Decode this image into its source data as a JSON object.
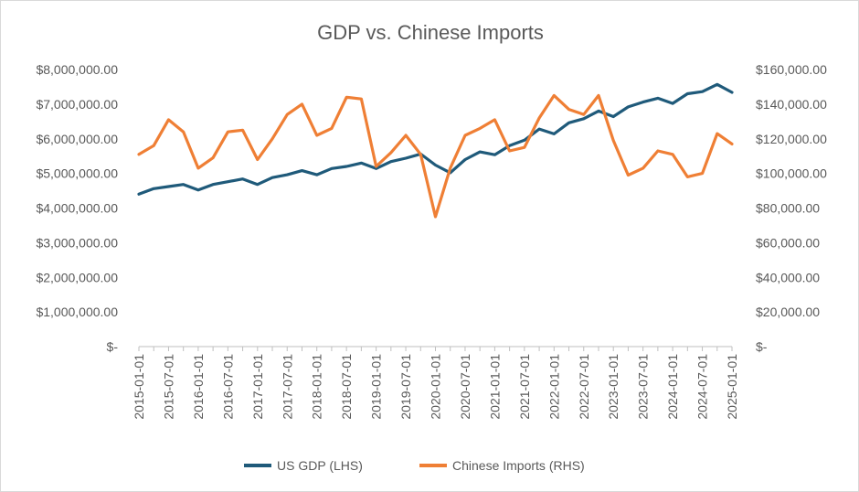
{
  "chart_data": {
    "type": "line",
    "title": "GDP vs. Chinese Imports",
    "colors": {
      "gdp": "#1f5a7a",
      "imports": "#ef7f35",
      "axis": "#bfbfbf",
      "text": "#595959"
    },
    "x_tick_labels": [
      "2015-01-01",
      "2015-07-01",
      "2016-01-01",
      "2016-07-01",
      "2017-01-01",
      "2017-07-01",
      "2018-01-01",
      "2018-07-01",
      "2019-01-01",
      "2019-07-01",
      "2020-01-01",
      "2020-07-01",
      "2021-01-01",
      "2021-07-01",
      "2022-01-01",
      "2022-07-01",
      "2023-01-01",
      "2023-07-01",
      "2024-01-01",
      "2024-07-01",
      "2025-01-01"
    ],
    "y_left": {
      "label": "",
      "ylim": [
        0,
        8000000
      ],
      "ticks": [
        "$-",
        "$1,000,000.00",
        "$2,000,000.00",
        "$3,000,000.00",
        "$4,000,000.00",
        "$5,000,000.00",
        "$6,000,000.00",
        "$7,000,000.00",
        "$8,000,000.00"
      ]
    },
    "y_right": {
      "label": "",
      "ylim": [
        0,
        160000
      ],
      "ticks": [
        "$-",
        "$20,000.00",
        "$40,000.00",
        "$60,000.00",
        "$80,000.00",
        "$100,000.00",
        "$120,000.00",
        "$140,000.00",
        "$160,000.00"
      ]
    },
    "series": [
      {
        "name": "US GDP (LHS)",
        "axis": "left",
        "values": [
          4400000,
          4560000,
          4620000,
          4680000,
          4520000,
          4680000,
          4760000,
          4840000,
          4680000,
          4880000,
          4960000,
          5080000,
          4960000,
          5140000,
          5200000,
          5300000,
          5140000,
          5340000,
          5440000,
          5560000,
          5240000,
          5020000,
          5400000,
          5620000,
          5540000,
          5800000,
          5960000,
          6280000,
          6140000,
          6460000,
          6580000,
          6800000,
          6640000,
          6920000,
          7060000,
          7170000,
          7020000,
          7300000,
          7360000,
          7570000,
          7340000
        ]
      },
      {
        "name": "Chinese Imports (RHS)",
        "axis": "right",
        "values": [
          111000,
          116000,
          131000,
          124000,
          103000,
          109000,
          124000,
          125000,
          108000,
          120000,
          134000,
          140000,
          122000,
          126000,
          144000,
          143000,
          104000,
          112000,
          122000,
          111000,
          75000,
          103000,
          122000,
          126000,
          131000,
          113000,
          115000,
          132000,
          145000,
          137000,
          134000,
          145000,
          119000,
          99000,
          103000,
          113000,
          111000,
          98000,
          100000,
          123000,
          117000
        ]
      }
    ],
    "legend": {
      "position": "bottom",
      "items": [
        "US GDP (LHS)",
        "Chinese Imports (RHS)"
      ]
    }
  }
}
